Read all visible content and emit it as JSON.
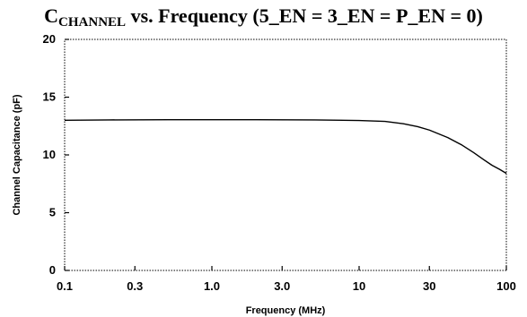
{
  "chart_data": {
    "type": "line",
    "title_prefix": "C",
    "title_subscript": "CHANNEL",
    "title_suffix": " vs. Frequency (5_EN = 3_EN = P_EN = 0)",
    "xlabel": "Frequency (MHz)",
    "ylabel": "Channel Capacitance (pF)",
    "x_scale": "log",
    "xlim": [
      0.1,
      100
    ],
    "ylim": [
      0,
      20
    ],
    "x_ticks": [
      0.1,
      0.3,
      1.0,
      3.0,
      10,
      30,
      100
    ],
    "x_tick_labels": [
      "0.1",
      "0.3",
      "1.0",
      "3.0",
      "10",
      "30",
      "100"
    ],
    "y_ticks": [
      0,
      5,
      10,
      15,
      20
    ],
    "y_tick_labels": [
      "0",
      "5",
      "10",
      "15",
      "20"
    ],
    "grid": false,
    "series": [
      {
        "color": "#000000",
        "x": [
          0.1,
          0.2,
          0.5,
          1,
          2,
          5,
          10,
          15,
          20,
          25,
          30,
          40,
          50,
          60,
          70,
          80,
          90,
          100
        ],
        "y": [
          13.0,
          13.03,
          13.05,
          13.05,
          13.05,
          13.03,
          12.98,
          12.9,
          12.7,
          12.45,
          12.15,
          11.5,
          10.85,
          10.2,
          9.6,
          9.1,
          8.75,
          8.4
        ]
      }
    ]
  }
}
